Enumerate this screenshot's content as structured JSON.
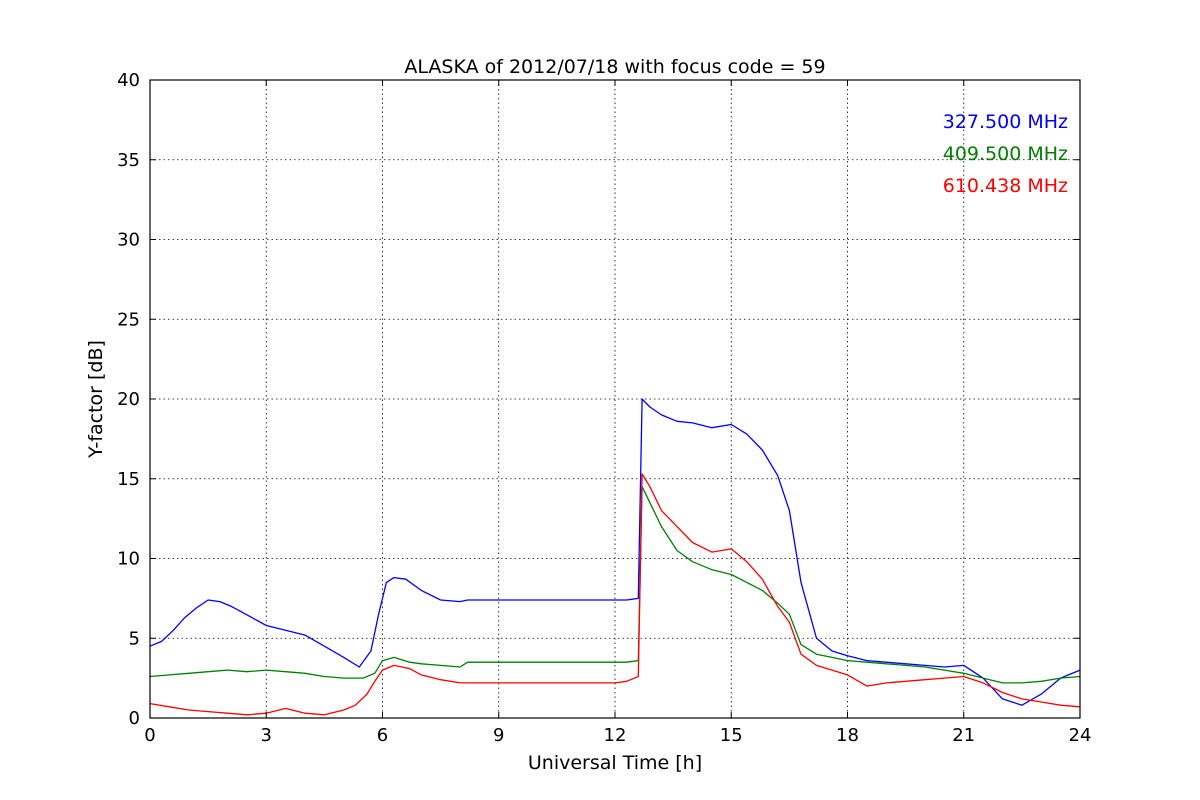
{
  "chart_data": {
    "type": "line",
    "title": "ALASKA of 2012/07/18 with focus code = 59",
    "xlabel": "Universal Time [h]",
    "ylabel": "Y-factor [dB]",
    "xlim": [
      0,
      24
    ],
    "ylim": [
      0,
      40
    ],
    "xticks": [
      0,
      3,
      6,
      9,
      12,
      15,
      18,
      21,
      24
    ],
    "yticks": [
      0,
      5,
      10,
      15,
      20,
      25,
      30,
      35,
      40
    ],
    "grid": true,
    "legend_position": "top-right",
    "series": [
      {
        "name": "327.500 MHz",
        "color": "#0000ff",
        "x": [
          0,
          0.3,
          0.6,
          0.9,
          1.2,
          1.5,
          1.8,
          2.1,
          2.4,
          2.7,
          3.0,
          3.5,
          4.0,
          4.5,
          5.0,
          5.4,
          5.7,
          5.9,
          6.1,
          6.3,
          6.6,
          7.0,
          7.5,
          8.0,
          8.2,
          12.0,
          12.3,
          12.6,
          12.7,
          12.9,
          13.2,
          13.6,
          14.0,
          14.5,
          15.0,
          15.4,
          15.8,
          16.2,
          16.5,
          16.8,
          17.2,
          17.6,
          18.0,
          18.5,
          19.0,
          19.5,
          20.0,
          20.5,
          21.0,
          21.5,
          22.0,
          22.5,
          23.0,
          23.5,
          24.0
        ],
        "y": [
          4.5,
          4.8,
          5.5,
          6.3,
          6.9,
          7.4,
          7.3,
          7.0,
          6.6,
          6.2,
          5.8,
          5.5,
          5.2,
          4.5,
          3.8,
          3.2,
          4.2,
          6.5,
          8.5,
          8.8,
          8.7,
          8.0,
          7.4,
          7.3,
          7.4,
          7.4,
          7.4,
          7.5,
          20.0,
          19.5,
          19.0,
          18.6,
          18.5,
          18.2,
          18.4,
          17.8,
          16.8,
          15.2,
          13.0,
          8.5,
          5.0,
          4.2,
          3.9,
          3.6,
          3.5,
          3.4,
          3.3,
          3.2,
          3.3,
          2.5,
          1.2,
          0.8,
          1.5,
          2.5,
          3.0
        ]
      },
      {
        "name": "409.500 MHz",
        "color": "#008000",
        "x": [
          0,
          0.5,
          1.0,
          1.5,
          2.0,
          2.5,
          3.0,
          3.5,
          4.0,
          4.5,
          5.0,
          5.5,
          5.8,
          6.0,
          6.3,
          6.7,
          7.0,
          7.5,
          8.0,
          8.2,
          12.0,
          12.3,
          12.6,
          12.7,
          12.9,
          13.2,
          13.6,
          14.0,
          14.5,
          15.0,
          15.4,
          15.8,
          16.2,
          16.5,
          16.8,
          17.2,
          17.6,
          18.0,
          18.5,
          19.0,
          19.5,
          20.0,
          20.5,
          21.0,
          21.5,
          22.0,
          22.5,
          23.0,
          23.5,
          24.0
        ],
        "y": [
          2.6,
          2.7,
          2.8,
          2.9,
          3.0,
          2.9,
          3.0,
          2.9,
          2.8,
          2.6,
          2.5,
          2.5,
          2.8,
          3.6,
          3.8,
          3.5,
          3.4,
          3.3,
          3.2,
          3.5,
          3.5,
          3.5,
          3.6,
          14.5,
          13.5,
          12.0,
          10.5,
          9.8,
          9.3,
          9.0,
          8.5,
          8.0,
          7.2,
          6.5,
          4.6,
          4.0,
          3.8,
          3.6,
          3.5,
          3.4,
          3.3,
          3.2,
          3.0,
          2.8,
          2.5,
          2.2,
          2.2,
          2.3,
          2.5,
          2.6
        ]
      },
      {
        "name": "610.438 MHz",
        "color": "#ff0000",
        "x": [
          0,
          0.5,
          1.0,
          1.5,
          2.0,
          2.5,
          3.0,
          3.5,
          4.0,
          4.5,
          5.0,
          5.3,
          5.6,
          5.8,
          6.0,
          6.3,
          6.7,
          7.0,
          7.5,
          8.0,
          8.2,
          12.0,
          12.3,
          12.6,
          12.7,
          12.9,
          13.2,
          13.6,
          14.0,
          14.5,
          15.0,
          15.4,
          15.8,
          16.2,
          16.5,
          16.8,
          17.2,
          17.6,
          18.0,
          18.5,
          19.0,
          19.5,
          20.0,
          20.5,
          21.0,
          21.5,
          22.0,
          22.5,
          23.0,
          23.5,
          24.0
        ],
        "y": [
          0.9,
          0.7,
          0.5,
          0.4,
          0.3,
          0.2,
          0.3,
          0.6,
          0.3,
          0.2,
          0.5,
          0.8,
          1.5,
          2.3,
          3.0,
          3.3,
          3.1,
          2.7,
          2.4,
          2.2,
          2.2,
          2.2,
          2.3,
          2.6,
          15.3,
          14.5,
          13.0,
          12.0,
          11.0,
          10.4,
          10.6,
          9.8,
          8.7,
          7.0,
          6.0,
          4.0,
          3.3,
          3.0,
          2.7,
          2.0,
          2.2,
          2.3,
          2.4,
          2.5,
          2.6,
          2.2,
          1.6,
          1.2,
          1.0,
          0.8,
          0.7
        ]
      }
    ]
  }
}
